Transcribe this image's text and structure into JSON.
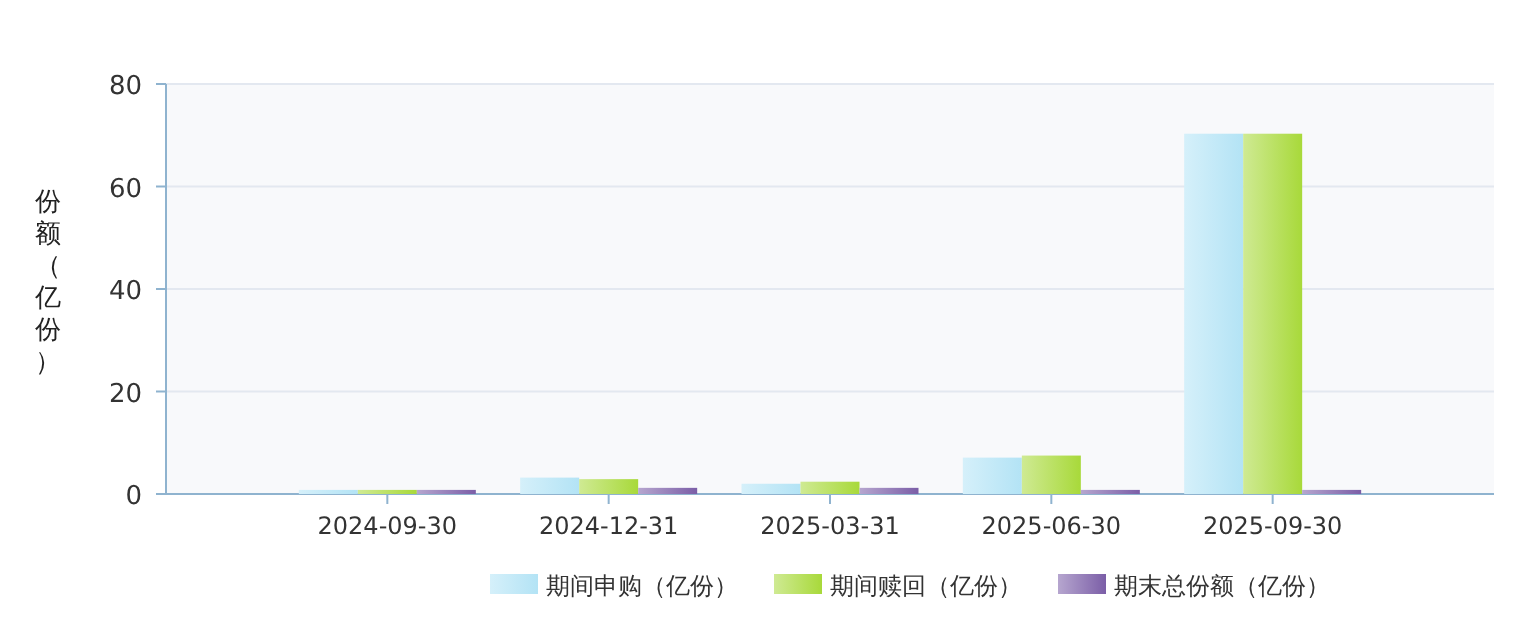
{
  "chart_data": {
    "type": "bar",
    "ylabel": "份额（亿份）",
    "categories": [
      "2024-09-30",
      "2024-12-31",
      "2025-03-31",
      "2025-06-30",
      "2025-09-30"
    ],
    "series": [
      {
        "name": "期间申购（亿份）",
        "color": "#b3e3f5",
        "values": [
          0.8,
          3.2,
          2.0,
          7.1,
          70.3
        ]
      },
      {
        "name": "期间赎回（亿份）",
        "color": "#a8d93a",
        "values": [
          0.8,
          2.9,
          2.4,
          7.5,
          70.3
        ]
      },
      {
        "name": "期末总份额（亿份）",
        "color": "#7b5ea7",
        "values": [
          0.8,
          1.2,
          1.2,
          0.8,
          0.8
        ]
      }
    ],
    "ylim": [
      0,
      80
    ],
    "yticks": [
      0,
      20,
      40,
      60,
      80
    ],
    "grid": "y",
    "legend": "bottom"
  }
}
